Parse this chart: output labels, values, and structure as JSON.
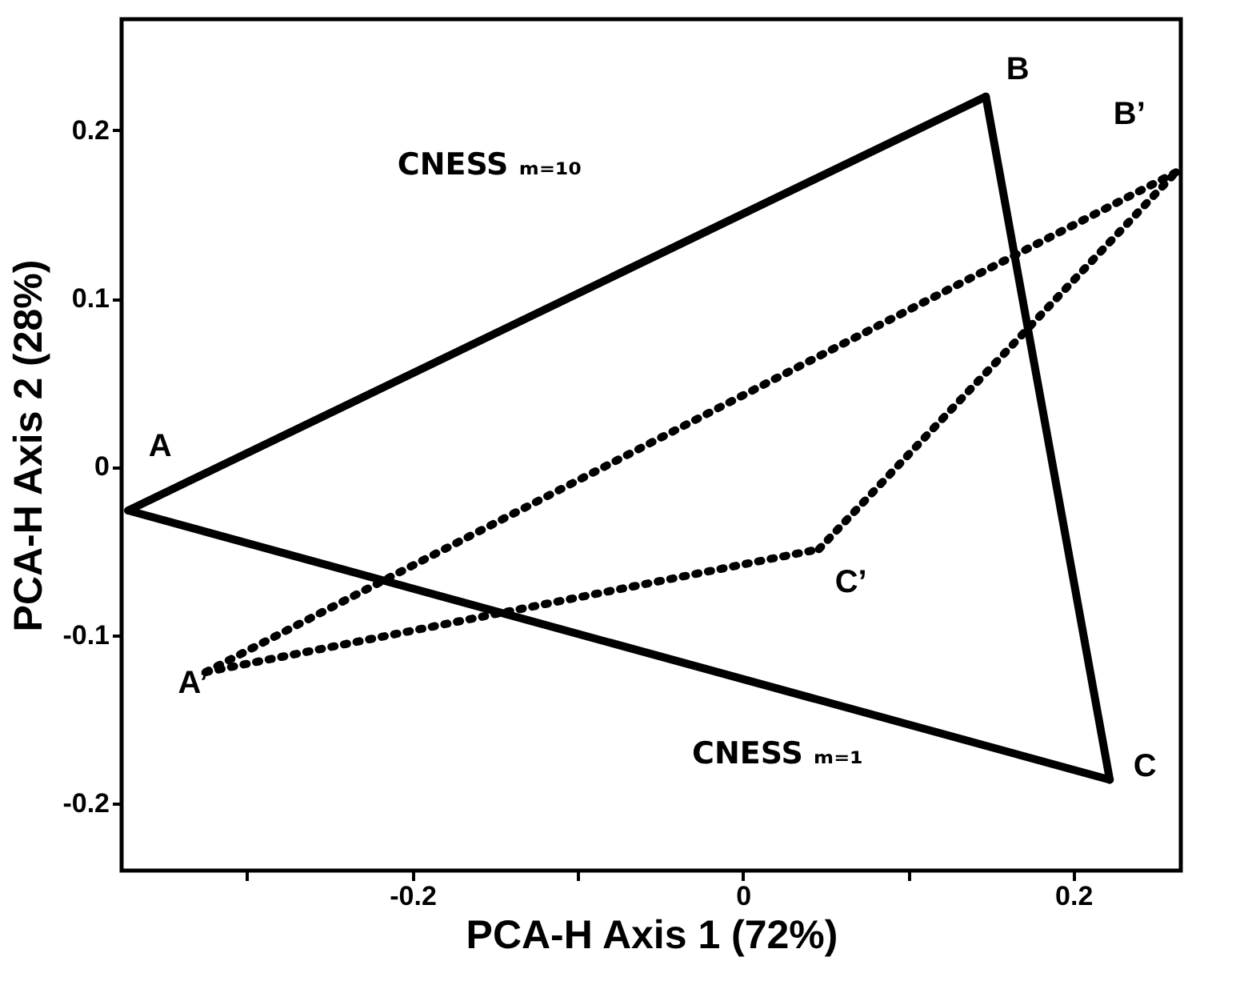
{
  "chart_data": {
    "type": "line",
    "xlabel": "PCA-H Axis 1 (72%)",
    "ylabel": "PCA-H Axis 2 (28%)",
    "xlim": [
      -0.376,
      0.265
    ],
    "ylim": [
      -0.24,
      0.266
    ],
    "xticks": [
      {
        "value": -0.3,
        "label": null
      },
      -0.2,
      {
        "value": -0.1,
        "label": null
      },
      0,
      {
        "value": 0.1,
        "label": null
      },
      0.2
    ],
    "yticks": [
      -0.2,
      -0.1,
      0,
      0.1,
      0.2
    ],
    "grid": false,
    "marker": "none",
    "series": [
      {
        "color": "#000000",
        "line_style": "solid",
        "x": [
          -0.372,
          0.147
        ],
        "values": [
          -0.026,
          0.22
        ]
      },
      {
        "color": "#000000",
        "line_style": "solid",
        "x": [
          0.147,
          0.222
        ],
        "values": [
          0.22,
          -0.186
        ]
      },
      {
        "color": "#000000",
        "line_style": "solid",
        "x": [
          -0.372,
          0.222
        ],
        "values": [
          -0.026,
          -0.186
        ]
      },
      {
        "color": "#000000",
        "line_style": "dotted",
        "x": [
          -0.325,
          0.262
        ],
        "values": [
          -0.122,
          0.175
        ]
      },
      {
        "color": "#000000",
        "line_style": "dotted",
        "x": [
          0.046,
          0.262
        ],
        "values": [
          -0.049,
          0.175
        ]
      },
      {
        "color": "#000000",
        "line_style": "dotted",
        "x": [
          -0.325,
          0.046
        ],
        "values": [
          -0.122,
          -0.049
        ]
      }
    ],
    "annotations": [
      {
        "text": "A",
        "x": -0.372,
        "y": -0.026
      },
      {
        "text": "B",
        "x": 0.147,
        "y": 0.22
      },
      {
        "text": "C",
        "x": 0.222,
        "y": -0.186
      },
      {
        "text": "A’",
        "x": -0.325,
        "y": -0.122
      },
      {
        "text": "B’",
        "x": 0.262,
        "y": 0.175
      },
      {
        "text": "C’",
        "x": 0.046,
        "y": -0.049
      },
      "CNESS ₘ₌₁₀",
      "CNESS ₘ₌₁"
    ]
  }
}
